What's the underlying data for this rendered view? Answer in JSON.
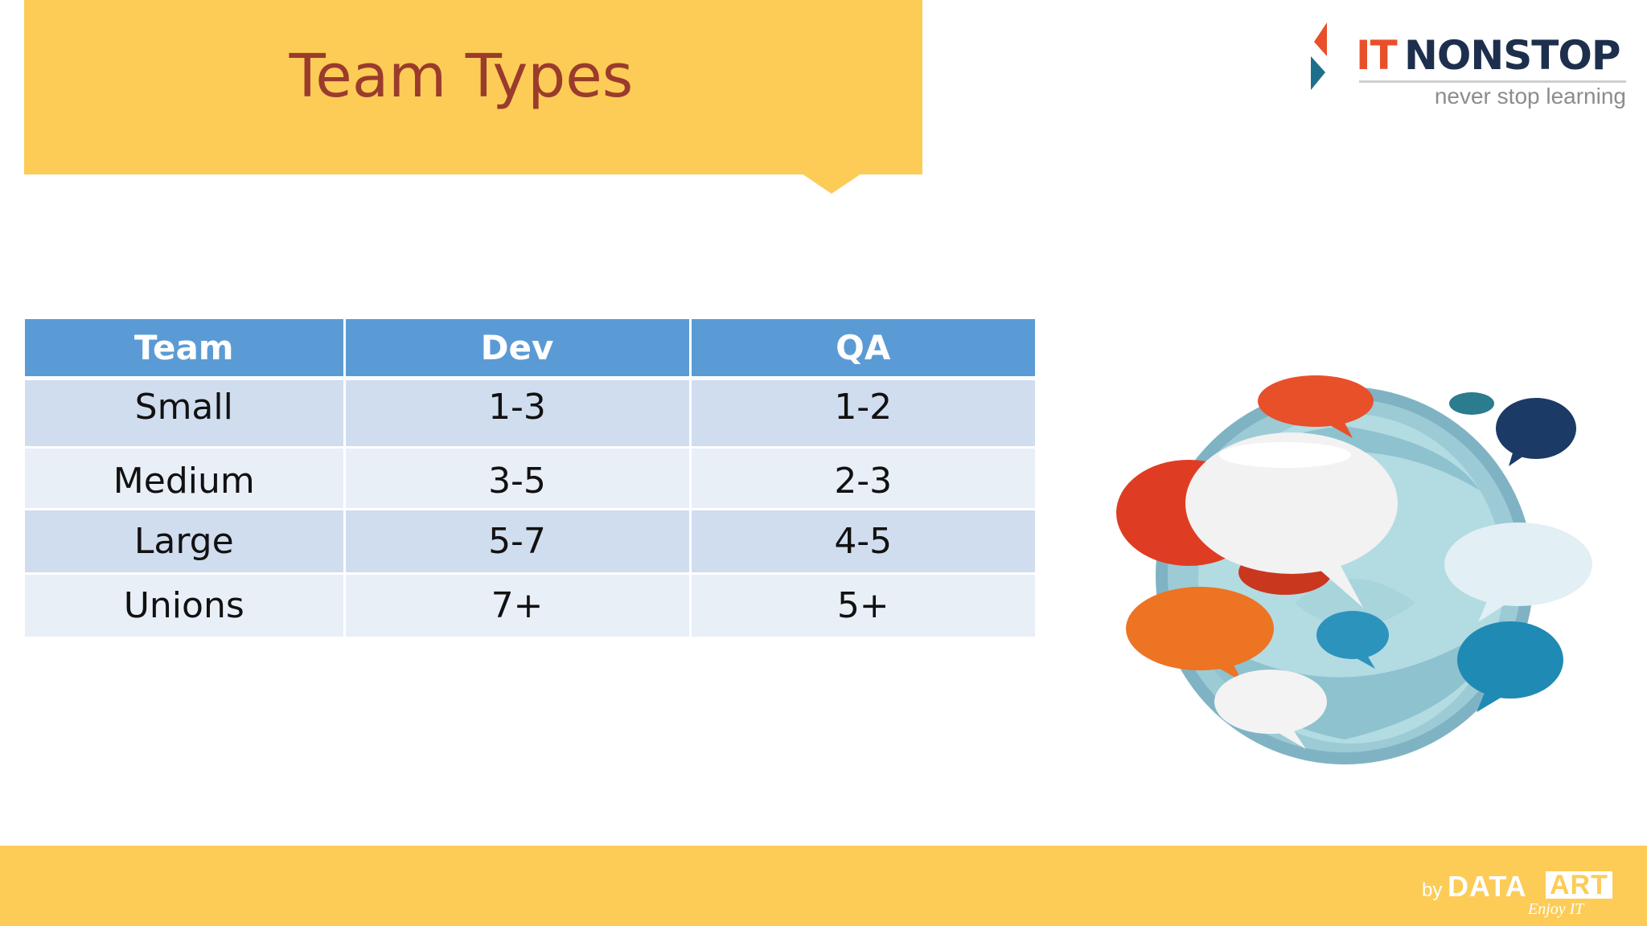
{
  "slide": {
    "title": "Team Types"
  },
  "logo": {
    "it": "IT",
    "name": "NONSTOP",
    "tagline": "never stop learning"
  },
  "table": {
    "headers": [
      "Team",
      "Dev",
      "QA"
    ],
    "rows": [
      [
        "Small",
        "1-3",
        "1-2"
      ],
      [
        "Medium",
        "3-5",
        "2-3"
      ],
      [
        "Large",
        "5-7",
        "4-5"
      ],
      [
        "Unions",
        "7+",
        "5+"
      ]
    ]
  },
  "illustration": {
    "icon": "speech-bubbles-globe"
  },
  "footer": {
    "by": "by",
    "brand_data": "DATA",
    "brand_art": "ART",
    "brand_slogan": "Enjoy IT"
  },
  "colors": {
    "banner": "#fccc57",
    "title": "#9a3b2c",
    "table_header": "#5b9bd5",
    "row_odd": "#d0ddef",
    "row_even": "#e9eff7"
  }
}
